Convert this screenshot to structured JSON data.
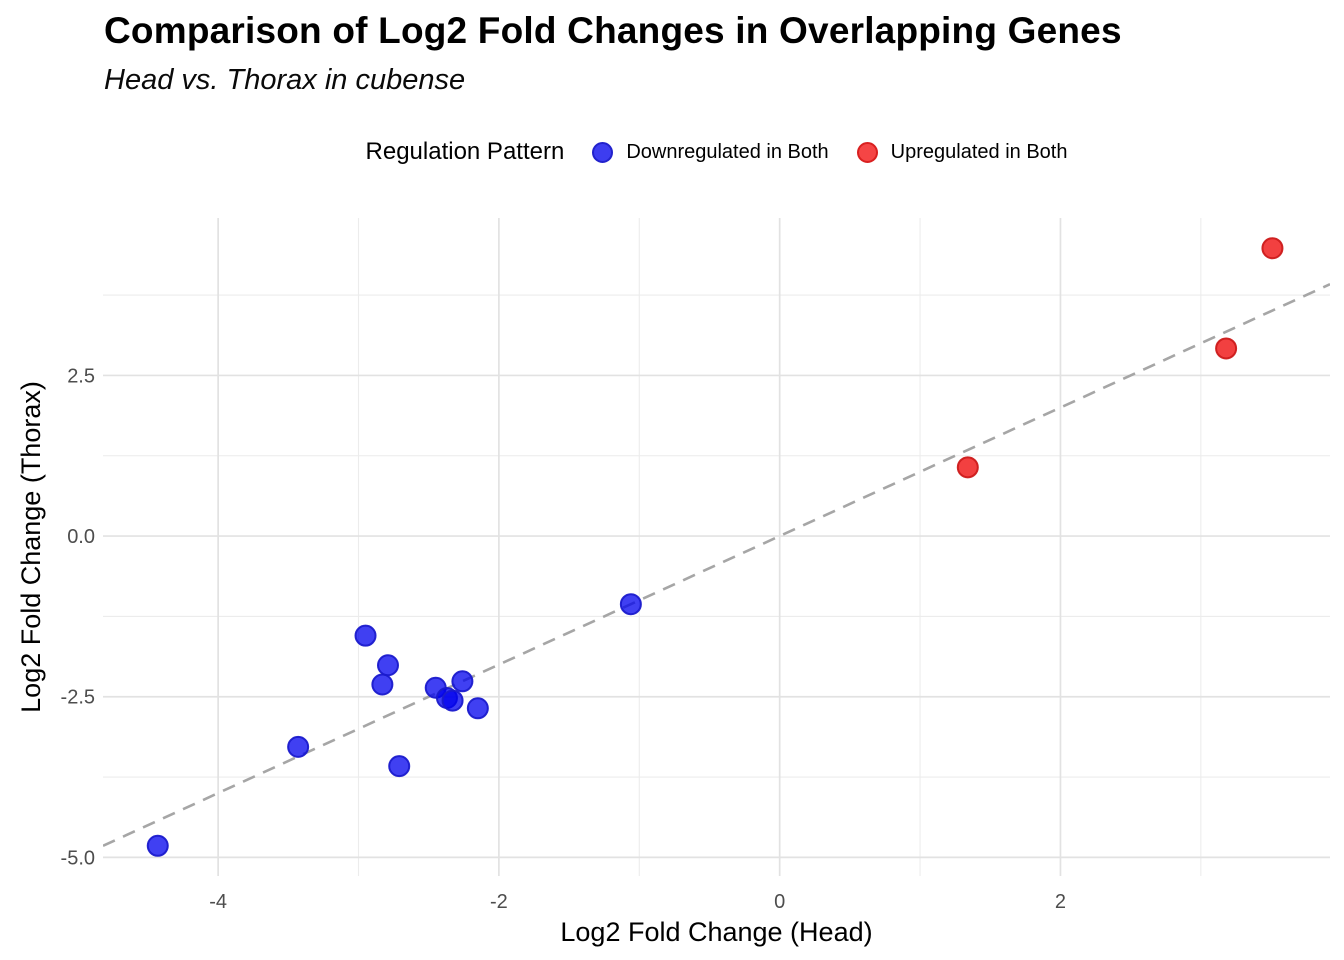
{
  "title": "Comparison of Log2 Fold Changes in Overlapping Genes",
  "subtitle": "Head vs. Thorax in cubense",
  "legend": {
    "title": "Regulation Pattern",
    "items": [
      {
        "label": "Downregulated in Both",
        "color": "#3d3df0",
        "border": "#2222cc"
      },
      {
        "label": "Upregulated in Both",
        "color": "#f54545",
        "border": "#d92020"
      }
    ]
  },
  "chart_data": {
    "type": "scatter",
    "title": "Comparison of Log2 Fold Changes in Overlapping Genes",
    "subtitle": "Head vs. Thorax in cubense",
    "xlabel": "Log2 Fold Change (Head)",
    "ylabel": "Log2 Fold Change (Thorax)",
    "xlim": [
      -4.82,
      3.92
    ],
    "ylim": [
      -5.29,
      4.95
    ],
    "x_ticks": [
      -4,
      -2,
      0,
      2
    ],
    "x_tick_labels": [
      "-4",
      "-2",
      "0",
      "2"
    ],
    "y_ticks": [
      2.5,
      0.0,
      -2.5,
      -5.0
    ],
    "y_tick_labels": [
      "2.5",
      "0.0",
      "-2.5",
      "-5.0"
    ],
    "x_minor_ticks": [
      -3,
      -1,
      1,
      3
    ],
    "y_minor_ticks": [
      3.75,
      1.25,
      -1.25,
      -3.75
    ],
    "grid": true,
    "legend_position": "top-center",
    "reference_line": {
      "style": "dashed",
      "slope": 1,
      "intercept": 0,
      "color": "#a6a6a6"
    },
    "series": [
      {
        "name": "Downregulated in Both",
        "color": "#0000ee",
        "stroke": "#1a1acc",
        "fill_opacity": 0.75,
        "points": [
          [
            -4.43,
            -4.82
          ],
          [
            -3.43,
            -3.28
          ],
          [
            -2.95,
            -1.55
          ],
          [
            -2.83,
            -2.31
          ],
          [
            -2.79,
            -2.01
          ],
          [
            -2.71,
            -3.58
          ],
          [
            -2.45,
            -2.36
          ],
          [
            -2.37,
            -2.52
          ],
          [
            -2.33,
            -2.56
          ],
          [
            -2.26,
            -2.26
          ],
          [
            -2.15,
            -2.68
          ],
          [
            -1.06,
            -1.06
          ]
        ]
      },
      {
        "name": "Upregulated in Both",
        "color": "#ee0000",
        "stroke": "#cc1a1a",
        "fill_opacity": 0.75,
        "points": [
          [
            1.34,
            1.07
          ],
          [
            3.18,
            2.92
          ],
          [
            3.51,
            4.48
          ]
        ]
      }
    ],
    "grid_colors": {
      "major": "#e2e2e2",
      "minor": "#ececec"
    }
  }
}
